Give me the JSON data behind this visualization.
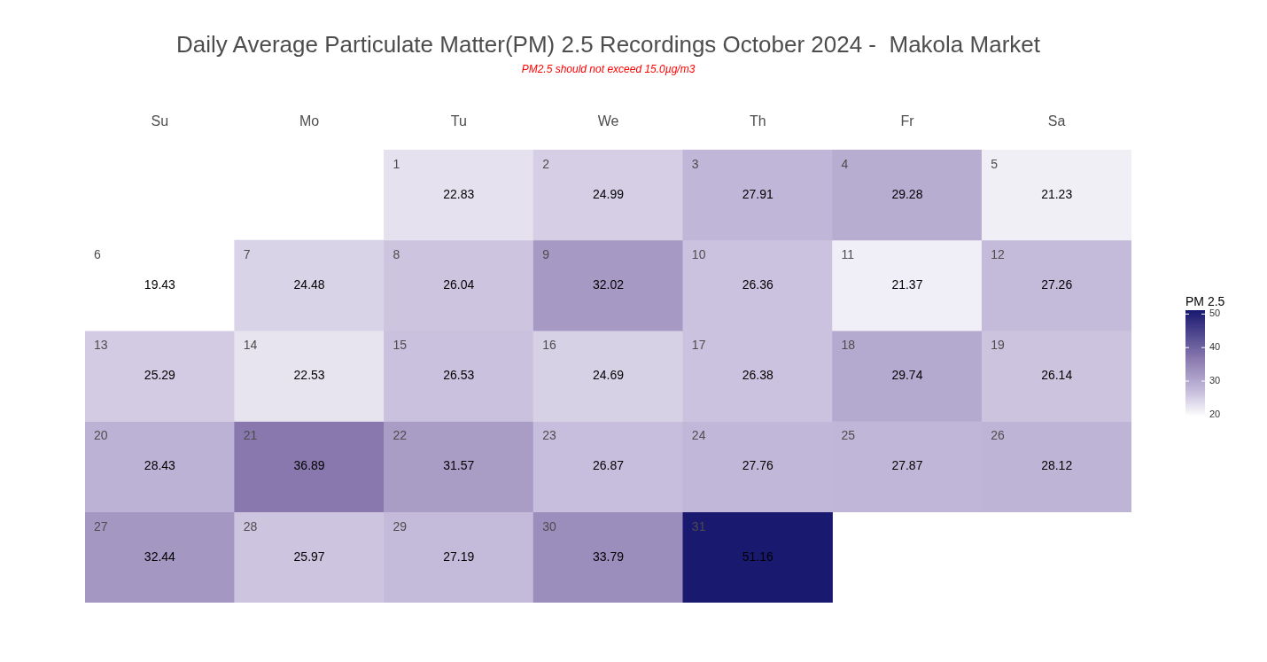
{
  "chart_data": {
    "type": "heatmap",
    "title": "Daily Average Particulate Matter(PM) 2.5 Recordings October 2024 -  Makola Market",
    "subtitle": "PM2.5 should not exceed 15.0µg/m3",
    "categories": [
      "Su",
      "Mo",
      "Tu",
      "We",
      "Th",
      "Fr",
      "Sa"
    ],
    "y_categories": [
      null,
      null,
      null,
      null,
      null
    ],
    "cells": [
      [
        null,
        null,
        22.83,
        24.99,
        27.91,
        29.28,
        21.23
      ],
      [
        19.43,
        24.48,
        26.04,
        32.02,
        26.36,
        21.37,
        27.26
      ],
      [
        25.29,
        22.53,
        26.53,
        24.69,
        26.38,
        29.74,
        26.14
      ],
      [
        28.43,
        36.89,
        31.57,
        26.87,
        27.76,
        27.87,
        28.12
      ],
      [
        32.44,
        25.97,
        27.19,
        33.79,
        51.16,
        null,
        null
      ]
    ],
    "annotations": [
      "1",
      "2",
      "3",
      "4",
      "5",
      "6",
      "7",
      "8",
      "9",
      "10",
      "11",
      "12",
      "13",
      "14",
      "15",
      "16",
      "17",
      "18",
      "19",
      "20",
      "21",
      "22",
      "23",
      "24",
      "25",
      "26",
      "27",
      "28",
      "29",
      "30",
      "31"
    ],
    "data_labels": true,
    "clabel": "PM 2.5",
    "clim": [
      19.43,
      51.16
    ],
    "cticks": [
      20,
      30,
      40,
      50
    ]
  }
}
